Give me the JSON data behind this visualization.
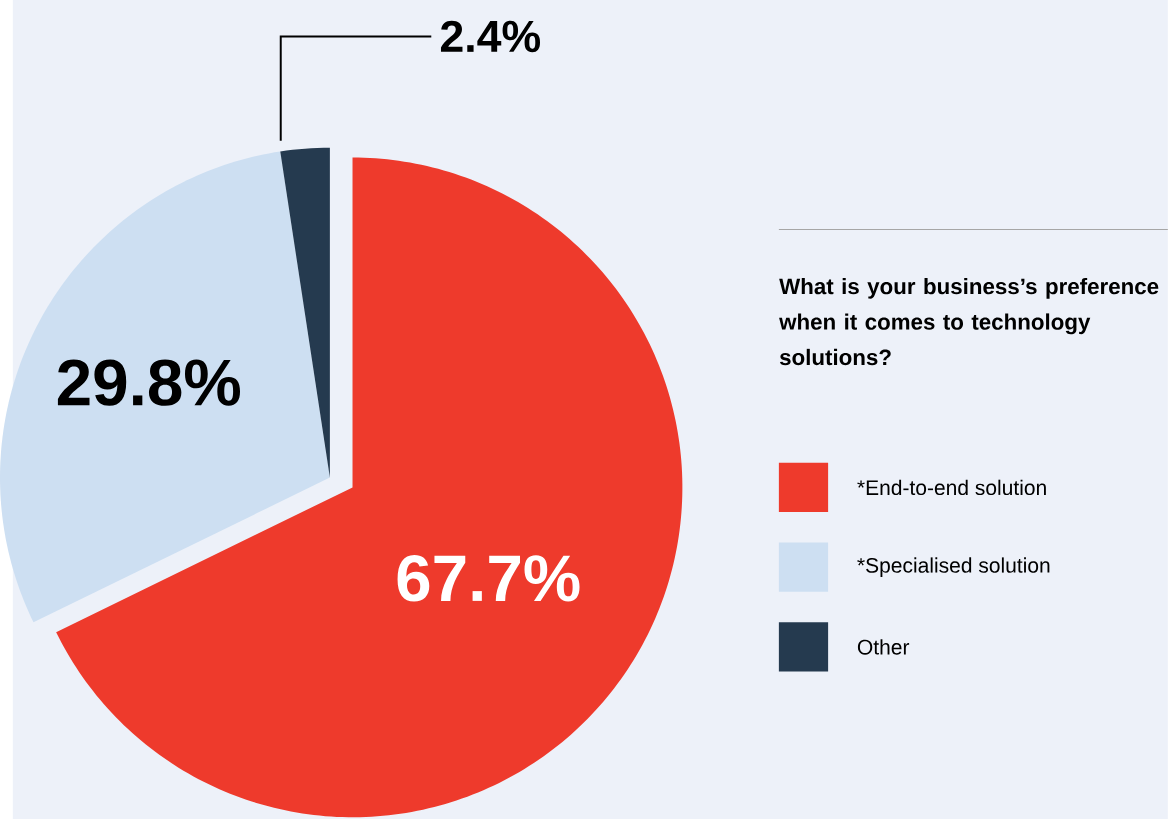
{
  "chart_data": {
    "type": "pie",
    "title": "What is your business’s preference when it comes to technology solutions?",
    "categories": [
      "*End-to-end solution",
      "*Specialised solution",
      "Other"
    ],
    "values": [
      67.7,
      29.8,
      2.4
    ],
    "colors": [
      "#ee3a2c",
      "#cddff2",
      "#253a4f"
    ],
    "value_labels": [
      "67.7%",
      "29.8%",
      "2.4%"
    ],
    "legend": "right"
  }
}
